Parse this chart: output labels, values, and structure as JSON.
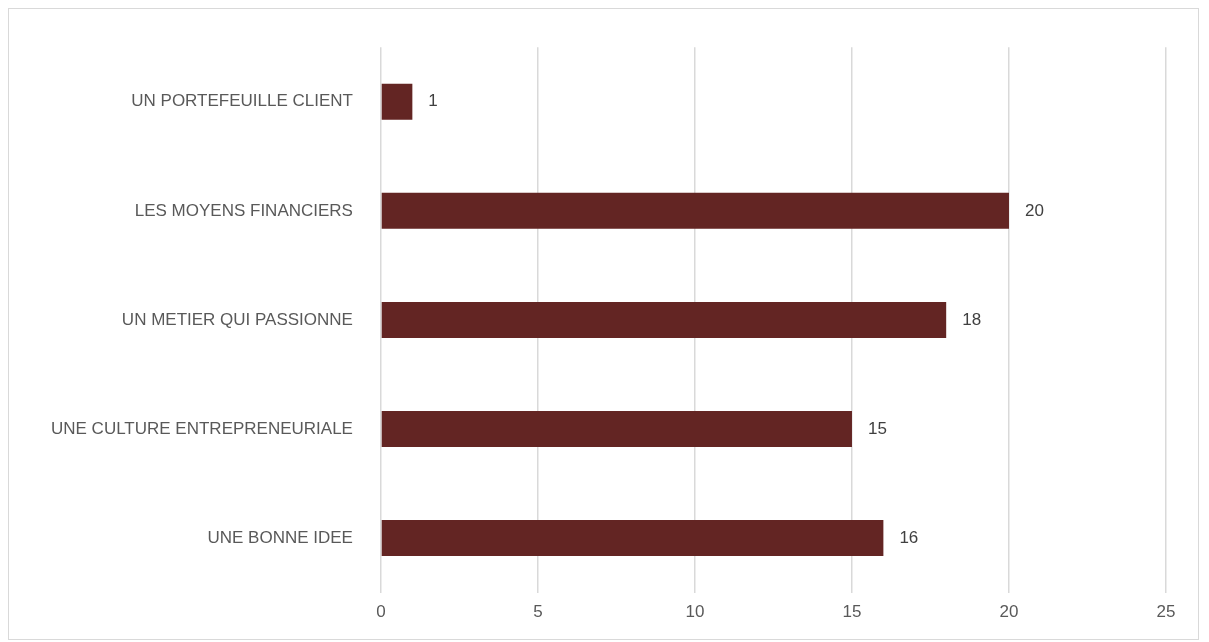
{
  "chart_data": {
    "type": "bar",
    "orientation": "horizontal",
    "categories": [
      "UN PORTEFEUILLE CLIENT",
      "LES MOYENS FINANCIERS",
      "UN METIER QUI PASSIONNE",
      "UNE CULTURE ENTREPRENEURIALE",
      "UNE BONNE IDEE"
    ],
    "values": [
      1,
      20,
      18,
      15,
      16
    ],
    "color": "#632523",
    "xlim": [
      0,
      25
    ],
    "xticks": [
      0,
      5,
      10,
      15,
      20,
      25
    ],
    "grid": "x",
    "data_labels": true,
    "legend": false
  }
}
